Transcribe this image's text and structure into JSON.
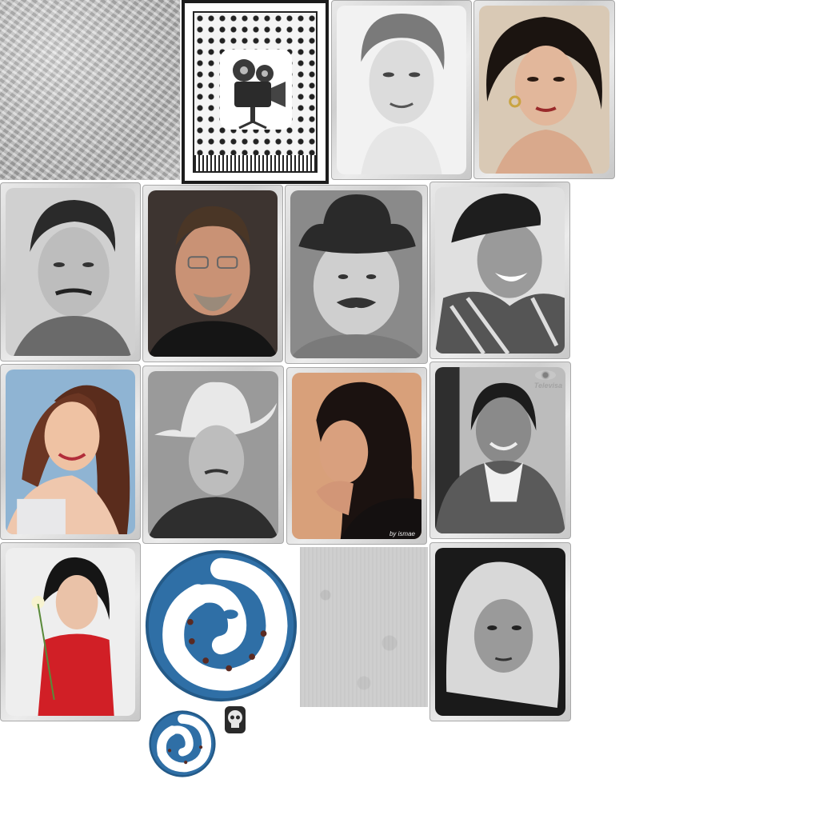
{
  "sheet_title": "",
  "sprites": [
    {
      "id": "texture-crumpled",
      "kind": "texture",
      "icon": "crumpled-paper"
    },
    {
      "id": "card-back",
      "kind": "card-back",
      "icon": "film-camera-icon"
    },
    {
      "id": "portrait-1",
      "kind": "portrait",
      "tone": "bw"
    },
    {
      "id": "portrait-2",
      "kind": "portrait",
      "tone": "color"
    },
    {
      "id": "portrait-3",
      "kind": "portrait",
      "tone": "bw"
    },
    {
      "id": "portrait-4",
      "kind": "portrait",
      "tone": "color"
    },
    {
      "id": "portrait-5",
      "kind": "portrait",
      "tone": "bw"
    },
    {
      "id": "portrait-6",
      "kind": "portrait",
      "tone": "bw"
    },
    {
      "id": "portrait-7",
      "kind": "portrait",
      "tone": "color"
    },
    {
      "id": "portrait-8",
      "kind": "portrait",
      "tone": "bw"
    },
    {
      "id": "portrait-9",
      "kind": "portrait",
      "tone": "color"
    },
    {
      "id": "portrait-10",
      "kind": "portrait",
      "tone": "bw"
    },
    {
      "id": "portrait-11",
      "kind": "portrait",
      "tone": "color"
    },
    {
      "id": "lizard-badge-large",
      "kind": "badge",
      "icon": "lizard-icon"
    },
    {
      "id": "texture-concrete",
      "kind": "texture",
      "icon": "concrete"
    },
    {
      "id": "portrait-12",
      "kind": "portrait",
      "tone": "bw"
    },
    {
      "id": "lizard-badge-small",
      "kind": "badge",
      "icon": "lizard-icon"
    },
    {
      "id": "skull-token",
      "kind": "token",
      "icon": "skull-icon"
    }
  ],
  "overlays": {
    "network_logo_text": "Televisa",
    "photo_credit": "by ismae"
  },
  "colors": {
    "frame": "#d6d6d6",
    "badge_blue": "#2f6fa6",
    "badge_blue_dark": "#245a88",
    "card_back_ink": "#1c1c1c",
    "background": "#ffffff"
  }
}
